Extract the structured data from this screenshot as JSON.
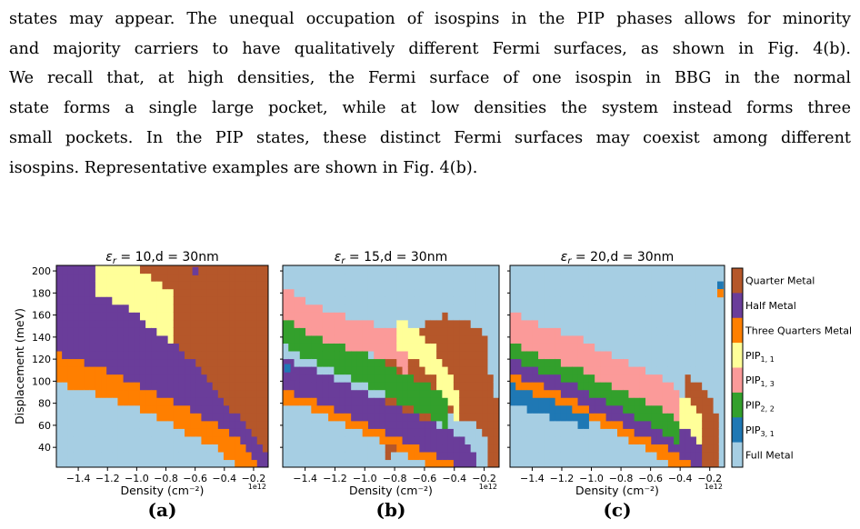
{
  "paragraph": {
    "lines": [
      "states may appear. The unequal occupation of isospins in the PIP phases allows for minority",
      "and majority carriers to have qualitatively different Fermi surfaces, as shown in Fig. 4(b).",
      "We recall that, at high densities, the Fermi surface of one isospin in BBG in the normal",
      "state forms a single large pocket, while at low densities the system instead forms three",
      "small pockets. In the PIP states, these distinct Fermi surfaces may coexist among different",
      "isospins. Representative examples are shown in Fig. 4(b)."
    ]
  },
  "chart_data": [
    {
      "type": "heatmap",
      "title": "ε_r = 10,d = 30nm",
      "title_parts": {
        "eps": "ε",
        "sub": "r",
        "rest": " = 10,d = 30nm"
      },
      "xlabel": "Density (cm⁻²)",
      "ylabel": "Displacement (meV)",
      "x_sci_label": "1e12",
      "caption": "(a)",
      "xlim": [
        -1.55,
        -0.1
      ],
      "ylim": [
        22,
        205
      ],
      "xticks": [
        -1.4,
        -1.2,
        -1.0,
        -0.8,
        -0.6,
        -0.4,
        -0.2
      ],
      "xtick_labels": [
        "−1.4",
        "−1.2",
        "−1.0",
        "−0.8",
        "−0.6",
        "−0.4",
        "−0.2"
      ],
      "yticks": [
        40,
        60,
        80,
        100,
        120,
        140,
        160,
        180,
        200
      ],
      "ytick_labels": [
        "40",
        "60",
        "80",
        "100",
        "120",
        "140",
        "160",
        "180",
        "200"
      ],
      "regions": [
        {
          "phase": "Full Metal",
          "boundary": [
            [
              -1.55,
              98
            ],
            [
              -1.2,
              86
            ],
            [
              -1.0,
              75
            ],
            [
              -0.8,
              63
            ],
            [
              -0.6,
              50
            ],
            [
              -0.45,
              40
            ],
            [
              -0.32,
              22
            ]
          ]
        },
        {
          "phase": "Three Quarters Metal",
          "boundary": [
            [
              -1.55,
              125
            ],
            [
              -1.2,
              110
            ],
            [
              -1.0,
              98
            ],
            [
              -0.8,
              86
            ],
            [
              -0.6,
              72
            ],
            [
              -0.4,
              57
            ],
            [
              -0.28,
              45
            ],
            [
              -0.18,
              22
            ]
          ]
        },
        {
          "phase": "Half Metal",
          "boundary": [
            [
              -1.55,
              188
            ],
            [
              -1.3,
              180
            ],
            [
              -1.1,
              170
            ],
            [
              -0.9,
              150
            ],
            [
              -0.7,
              130
            ],
            [
              -0.5,
              100
            ],
            [
              -0.35,
              75
            ],
            [
              -0.2,
              50
            ],
            [
              -0.1,
              30
            ]
          ]
        },
        {
          "phase": "PIP_{1,1}",
          "boundary": [
            [
              -1.28,
              205
            ],
            [
              -1.1,
              190
            ],
            [
              -0.9,
              170
            ],
            [
              -0.8,
              158
            ]
          ]
        }
      ],
      "extra_cells": [
        {
          "phase": "Half Metal",
          "x": -0.6,
          "y": 200
        }
      ]
    },
    {
      "type": "heatmap",
      "title": "ε_r = 15,d = 30nm",
      "title_parts": {
        "eps": "ε",
        "sub": "r",
        "rest": " = 15,d = 30nm"
      },
      "xlabel": "Density (cm⁻²)",
      "x_sci_label": "1e12",
      "caption": "(b)",
      "xlim": [
        -1.55,
        -0.1
      ],
      "ylim": [
        22,
        205
      ],
      "xticks": [
        -1.4,
        -1.2,
        -1.0,
        -0.8,
        -0.6,
        -0.4,
        -0.2
      ],
      "xtick_labels": [
        "−1.4",
        "−1.2",
        "−1.0",
        "−0.8",
        "−0.6",
        "−0.4",
        "−0.2"
      ],
      "regions": [
        {
          "phase": "Quarter Metal",
          "boundary": [
            [
              -0.85,
              120
            ],
            [
              -0.7,
              140
            ],
            [
              -0.55,
              155
            ],
            [
              -0.45,
              160
            ],
            [
              -0.35,
              155
            ],
            [
              -0.25,
              150
            ],
            [
              -0.2,
              145
            ],
            [
              -0.15,
              100
            ],
            [
              -0.1,
              75
            ]
          ]
        },
        {
          "phase": "Three Quarters Metal",
          "boundary": [
            [
              -1.55,
              110
            ],
            [
              -1.3,
              100
            ],
            [
              -1.1,
              88
            ],
            [
              -0.9,
              75
            ],
            [
              -0.7,
              60
            ],
            [
              -0.5,
              45
            ],
            [
              -0.35,
              33
            ],
            [
              -0.25,
              22
            ]
          ]
        },
        {
          "phase": "Half Metal",
          "boundary": [
            [
              -1.55,
              122
            ],
            [
              -1.3,
              108
            ],
            [
              -1.1,
              97
            ],
            [
              -0.9,
              85
            ],
            [
              -0.7,
              72
            ],
            [
              -0.5,
              60
            ],
            [
              -0.35,
              48
            ],
            [
              -0.25,
              35
            ]
          ]
        },
        {
          "phase": "PIP_{2,2}",
          "boundary": [
            [
              -1.55,
              162
            ],
            [
              -1.4,
              150
            ],
            [
              -1.2,
              138
            ],
            [
              -1.0,
              125
            ],
            [
              -0.8,
              112
            ],
            [
              -0.6,
              98
            ],
            [
              -0.45,
              85
            ]
          ]
        },
        {
          "phase": "PIP_{1,3}",
          "boundary": [
            [
              -1.55,
              188
            ],
            [
              -1.4,
              172
            ],
            [
              -1.2,
              162
            ],
            [
              -1.0,
              155
            ],
            [
              -0.8,
              145
            ],
            [
              -0.7,
              135
            ]
          ]
        },
        {
          "phase": "PIP_{1,1}",
          "boundary": [
            [
              -0.8,
              158
            ],
            [
              -0.7,
              150
            ],
            [
              -0.55,
              135
            ],
            [
              -0.45,
              110
            ],
            [
              -0.35,
              85
            ]
          ]
        }
      ],
      "extra_cells": [
        {
          "phase": "PIP_{3,1}",
          "x": -1.52,
          "y": 112
        },
        {
          "phase": "Half Metal",
          "x": -1.48,
          "y": 105
        }
      ]
    },
    {
      "type": "heatmap",
      "title": "ε_r = 20,d = 30nm",
      "title_parts": {
        "eps": "ε",
        "sub": "r",
        "rest": " = 20,d = 30nm"
      },
      "xlabel": "Density (cm⁻²)",
      "x_sci_label": "1e12",
      "caption": "(c)",
      "xlim": [
        -1.55,
        -0.1
      ],
      "ylim": [
        22,
        205
      ],
      "xticks": [
        -1.4,
        -1.2,
        -1.0,
        -0.8,
        -0.6,
        -0.4,
        -0.2
      ],
      "xtick_labels": [
        "−1.4",
        "−1.2",
        "−1.0",
        "−0.8",
        "−0.6",
        "−0.4",
        "−0.2"
      ],
      "regions": [
        {
          "phase": "Quarter Metal",
          "boundary": [
            [
              -0.35,
              105
            ],
            [
              -0.25,
              95
            ],
            [
              -0.2,
              85
            ],
            [
              -0.15,
              70
            ]
          ]
        },
        {
          "phase": "PIP_{3,1}",
          "boundary": [
            [
              -1.55,
              110
            ],
            [
              -1.4,
              100
            ],
            [
              -1.2,
              92
            ],
            [
              -1.0,
              85
            ]
          ]
        },
        {
          "phase": "Three Quarters Metal",
          "boundary": [
            [
              -1.55,
              125
            ],
            [
              -1.3,
              112
            ],
            [
              -1.1,
              100
            ],
            [
              -0.9,
              87
            ],
            [
              -0.7,
              72
            ],
            [
              -0.5,
              55
            ],
            [
              -0.35,
              42
            ],
            [
              -0.25,
              35
            ]
          ]
        },
        {
          "phase": "Half Metal",
          "boundary": [
            [
              -1.55,
              135
            ],
            [
              -1.3,
              122
            ],
            [
              -1.1,
              110
            ],
            [
              -0.9,
              95
            ],
            [
              -0.7,
              82
            ],
            [
              -0.5,
              68
            ],
            [
              -0.35,
              55
            ],
            [
              -0.25,
              48
            ]
          ]
        },
        {
          "phase": "PIP_{2,2}",
          "boundary": [
            [
              -1.55,
              148
            ],
            [
              -1.3,
              136
            ],
            [
              -1.1,
              124
            ],
            [
              -0.9,
              110
            ],
            [
              -0.7,
              96
            ],
            [
              -0.5,
              80
            ],
            [
              -0.4,
              70
            ]
          ]
        },
        {
          "phase": "PIP_{1,3}",
          "boundary": [
            [
              -1.55,
              162
            ],
            [
              -1.3,
              150
            ],
            [
              -1.1,
              140
            ],
            [
              -0.9,
              127
            ],
            [
              -0.7,
              115
            ],
            [
              -0.55,
              105
            ],
            [
              -0.4,
              90
            ],
            [
              -0.3,
              75
            ]
          ]
        },
        {
          "phase": "PIP_{1,1}",
          "boundary": [
            [
              -0.4,
              88
            ],
            [
              -0.3,
              78
            ],
            [
              -0.25,
              60
            ]
          ]
        }
      ],
      "extra_cells": [
        {
          "phase": "PIP_{3,1}",
          "x": -0.13,
          "y": 187
        },
        {
          "phase": "Three Quarters Metal",
          "x": -0.13,
          "y": 180
        }
      ]
    }
  ],
  "legend": {
    "items": [
      {
        "key": "Quarter Metal",
        "label": "Quarter Metal",
        "color": "#b5572a"
      },
      {
        "key": "Half Metal",
        "label": "Half Metal",
        "color": "#6a3d9a"
      },
      {
        "key": "Three Quarters Metal",
        "label": "Three Quarters Metal",
        "color": "#ff7f00"
      },
      {
        "key": "PIP_{1,1}",
        "label_base": "PIP",
        "label_sub": "1, 1",
        "color": "#ffff99"
      },
      {
        "key": "PIP_{1,3}",
        "label_base": "PIP",
        "label_sub": "1, 3",
        "color": "#fb9a99"
      },
      {
        "key": "PIP_{2,2}",
        "label_base": "PIP",
        "label_sub": "2, 2",
        "color": "#33a02c"
      },
      {
        "key": "PIP_{3,1}",
        "label_base": "PIP",
        "label_sub": "3, 1",
        "color": "#1f78b4"
      },
      {
        "key": "Full Metal",
        "label": "Full Metal",
        "color": "#a6cee3"
      }
    ]
  }
}
